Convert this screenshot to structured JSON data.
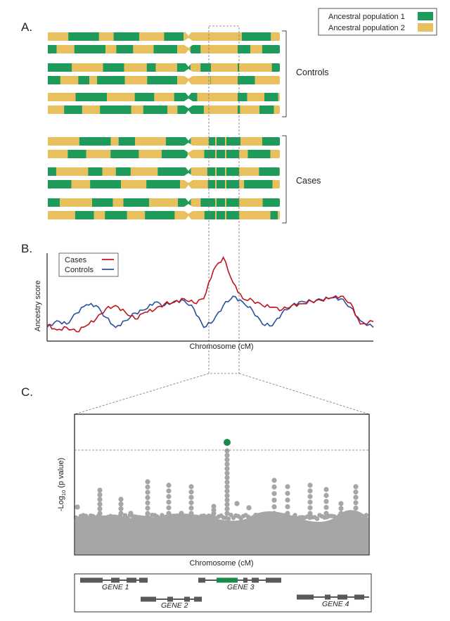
{
  "panels": {
    "a": "A.",
    "b": "B.",
    "c": "C."
  },
  "legend": {
    "ancestral_pop_1": "Ancestral population 1",
    "ancestral_pop_2": "Ancestral population 2"
  },
  "groups": {
    "controls": "Controls",
    "cases": "Cases"
  },
  "colors": {
    "pop1_green": "#1e9a5a",
    "pop2_yellow": "#e8c15e",
    "cases_red": "#c0141c",
    "controls_blue": "#2b4f9c",
    "snp_gray": "#a6a6a6",
    "gene_dark": "#595959",
    "hit_green": "#1a8a4a"
  },
  "panel_b": {
    "ylabel": "Ancestry score",
    "xlabel": "Chromosome (cM)",
    "legend_cases": "Cases",
    "legend_controls": "Controls"
  },
  "panel_c": {
    "ylabel_prefix": "-Log",
    "ylabel_sub": "10",
    "ylabel_suffix": " (p value)",
    "xlabel": "Chromosome (cM)"
  },
  "genes": {
    "gene1": "GENE 1",
    "gene2": "GENE 2",
    "gene3": "GENE 3",
    "gene4": "GENE 4"
  },
  "chart_data": {
    "type": "line",
    "title": "",
    "xlabel": "Chromosome (cM)",
    "ylabel": "Ancestry score",
    "x": [
      0,
      3,
      6,
      9,
      12,
      15,
      18,
      21,
      24,
      27,
      30,
      33,
      36,
      39,
      42,
      45,
      48,
      51,
      54,
      57,
      60,
      63,
      66,
      69,
      72,
      75,
      78,
      81,
      84,
      87,
      90,
      93,
      96,
      100
    ],
    "series": [
      {
        "name": "Cases",
        "values": [
          0.15,
          0.09,
          0.12,
          0.07,
          0.14,
          0.22,
          0.34,
          0.38,
          0.3,
          0.22,
          0.3,
          0.33,
          0.4,
          0.42,
          0.46,
          0.41,
          0.46,
          0.8,
          0.95,
          0.65,
          0.46,
          0.44,
          0.38,
          0.36,
          0.33,
          0.38,
          0.4,
          0.43,
          0.44,
          0.47,
          0.49,
          0.41,
          0.16,
          0.19
        ]
      },
      {
        "name": "Controls",
        "values": [
          0.12,
          0.2,
          0.16,
          0.29,
          0.39,
          0.38,
          0.24,
          0.12,
          0.2,
          0.29,
          0.33,
          0.42,
          0.38,
          0.43,
          0.44,
          0.34,
          0.12,
          0.2,
          0.38,
          0.49,
          0.42,
          0.32,
          0.16,
          0.14,
          0.29,
          0.38,
          0.43,
          0.43,
          0.45,
          0.47,
          0.46,
          0.36,
          0.2,
          0.12
        ]
      }
    ],
    "ylim": [
      0,
      1
    ],
    "xlim": [
      0,
      100
    ],
    "legend_position": "top-left"
  }
}
